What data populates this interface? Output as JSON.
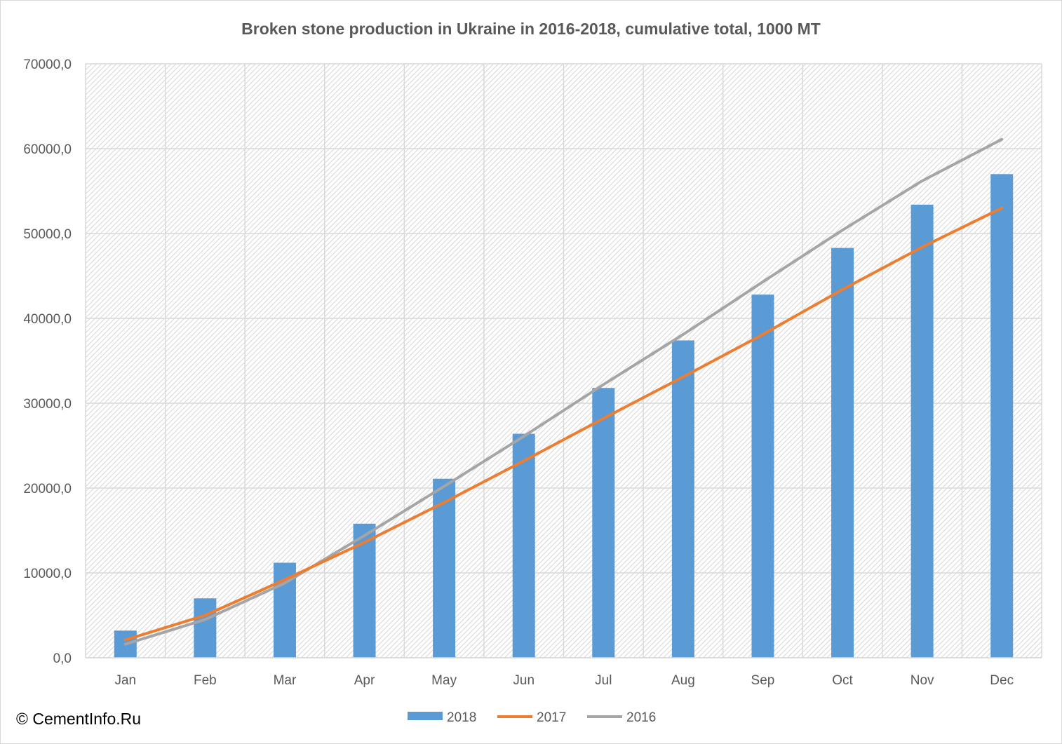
{
  "chart_data": {
    "type": "bar",
    "title": "Broken stone production in Ukraine in 2016-2018, cumulative total, 1000 MT",
    "xlabel": "",
    "ylabel": "",
    "categories": [
      "Jan",
      "Feb",
      "Mar",
      "Apr",
      "May",
      "Jun",
      "Jul",
      "Aug",
      "Sep",
      "Oct",
      "Nov",
      "Dec"
    ],
    "ylim": [
      0,
      70000
    ],
    "yticks": [
      0,
      10000,
      20000,
      30000,
      40000,
      50000,
      60000,
      70000
    ],
    "ytick_labels": [
      "0,0",
      "10000,0",
      "20000,0",
      "30000,0",
      "40000,0",
      "50000,0",
      "60000,0",
      "70000,0"
    ],
    "grid": true,
    "legend_position": "bottom",
    "series": [
      {
        "name": "2018",
        "type": "bar",
        "color": "#5b9bd5",
        "values": [
          3200,
          7000,
          11200,
          15800,
          21100,
          26400,
          31800,
          37400,
          42800,
          48300,
          53400,
          57000
        ]
      },
      {
        "name": "2017",
        "type": "line",
        "color": "#ed7d31",
        "values": [
          2100,
          5000,
          9200,
          13600,
          18300,
          23200,
          28200,
          33100,
          38100,
          43400,
          48400,
          53000
        ]
      },
      {
        "name": "2016",
        "type": "line",
        "color": "#a5a5a5",
        "values": [
          1600,
          4500,
          8800,
          14400,
          20200,
          26100,
          32200,
          38100,
          44300,
          50400,
          56200,
          61100
        ]
      }
    ]
  },
  "copyright": "© CementInfo.Ru"
}
